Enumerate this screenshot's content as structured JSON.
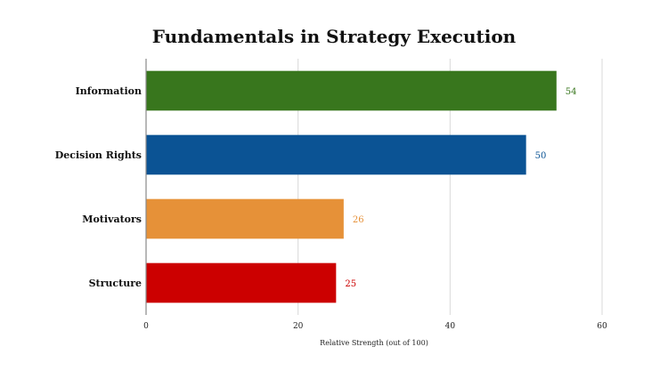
{
  "chart_data": {
    "type": "bar",
    "orientation": "horizontal",
    "title": "Fundamentals in Strategy Execution",
    "xlabel": "Relative Strength (out of 100)",
    "ylabel": "",
    "categories": [
      "Information",
      "Decision Rights",
      "Motivators",
      "Structure"
    ],
    "values": [
      54,
      50,
      26,
      25
    ],
    "colors": [
      "#38761d",
      "#0b5394",
      "#e69138",
      "#cc0000"
    ],
    "value_labels": [
      "54",
      "50",
      "26",
      "25"
    ],
    "xlim": [
      0,
      60
    ],
    "xticks": [
      0,
      20,
      40,
      60
    ],
    "xtick_labels": [
      "0",
      "20",
      "40",
      "60"
    ],
    "grid": true,
    "legend": "none"
  }
}
